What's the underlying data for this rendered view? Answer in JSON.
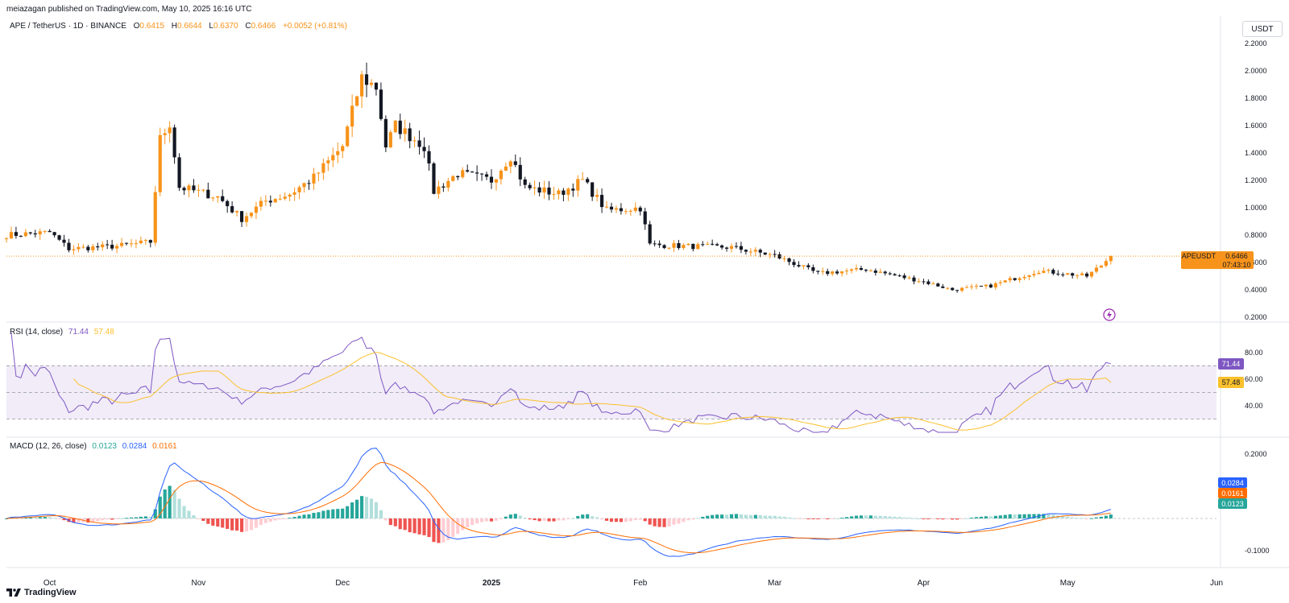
{
  "header": {
    "published": "meiazagan published on TradingView.com, May 10, 2025 16:16 UTC"
  },
  "symbol": {
    "name": "APE / TetherUS · 1D · BINANCE",
    "o_label": "O",
    "o": "0.6415",
    "h_label": "H",
    "h": "0.6644",
    "l_label": "L",
    "l": "0.6370",
    "c_label": "C",
    "c": "0.6466",
    "change": "+0.0052 (+0.81%)"
  },
  "currency": "USDT",
  "price_axis": {
    "labels": [
      "2.2000",
      "2.0000",
      "1.8000",
      "1.6000",
      "1.4000",
      "1.2000",
      "1.0000",
      "0.8000",
      "0.6000",
      "0.4000",
      "0.2000"
    ],
    "min": 0.2,
    "max": 2.2
  },
  "last_price": {
    "ticker": "APEUSDT",
    "value": "0.6466",
    "countdown": "07:43:10",
    "value_num": 0.6466
  },
  "time_axis": {
    "labels": [
      "Oct",
      "Nov",
      "Dec",
      "2025",
      "Feb",
      "Mar",
      "Apr",
      "May",
      "Jun"
    ]
  },
  "rsi": {
    "legend_name": "RSI (14, close)",
    "value": "71.44",
    "ma": "57.48",
    "axis_labels": [
      "80.00",
      "60.00",
      "40.00"
    ],
    "upper": 70,
    "mid": 50,
    "lower": 30
  },
  "macd": {
    "legend_name": "MACD (12, 26, close)",
    "hist": "0.0123",
    "macd": "0.0284",
    "signal": "0.0161",
    "axis_labels": [
      "0.2000",
      "-0.1000"
    ]
  },
  "colors": {
    "up": "#f7931a",
    "down": "#131722",
    "rsi": "#7e57c2",
    "rsi_ma": "#fbc02d",
    "macd": "#2962ff",
    "signal": "#ff6d00",
    "hist_up": "#26a69a",
    "hist_down": "#ef5350"
  },
  "footer": {
    "brand": "TradingView"
  },
  "chart_data": {
    "type": "candlestick",
    "title": "APE / TetherUS · 1D · BINANCE",
    "ylim": [
      0.2,
      2.2
    ],
    "x_range": [
      "2024-09-22",
      "2025-06-01"
    ],
    "key_points": [
      [
        "2024-09-22",
        0.8
      ],
      [
        "2024-10-01",
        0.82
      ],
      [
        "2024-10-05",
        0.7
      ],
      [
        "2024-10-15",
        0.72
      ],
      [
        "2024-10-22",
        0.75
      ],
      [
        "2024-10-24",
        1.5
      ],
      [
        "2024-10-26",
        1.62
      ],
      [
        "2024-10-28",
        1.15
      ],
      [
        "2024-11-05",
        1.08
      ],
      [
        "2024-11-10",
        0.92
      ],
      [
        "2024-11-15",
        1.05
      ],
      [
        "2024-11-20",
        1.1
      ],
      [
        "2024-11-25",
        1.22
      ],
      [
        "2024-12-01",
        1.45
      ],
      [
        "2024-12-05",
        1.95
      ],
      [
        "2024-12-08",
        1.88
      ],
      [
        "2024-12-10",
        1.45
      ],
      [
        "2024-12-12",
        1.6
      ],
      [
        "2024-12-18",
        1.45
      ],
      [
        "2024-12-20",
        1.12
      ],
      [
        "2024-12-25",
        1.25
      ],
      [
        "2025-01-01",
        1.2
      ],
      [
        "2025-01-05",
        1.38
      ],
      [
        "2025-01-08",
        1.15
      ],
      [
        "2025-01-15",
        1.1
      ],
      [
        "2025-01-20",
        1.2
      ],
      [
        "2025-01-25",
        0.98
      ],
      [
        "2025-02-01",
        1.0
      ],
      [
        "2025-02-03",
        0.73
      ],
      [
        "2025-02-10",
        0.72
      ],
      [
        "2025-02-20",
        0.71
      ],
      [
        "2025-03-01",
        0.65
      ],
      [
        "2025-03-10",
        0.52
      ],
      [
        "2025-03-20",
        0.55
      ],
      [
        "2025-04-01",
        0.46
      ],
      [
        "2025-04-07",
        0.4
      ],
      [
        "2025-04-15",
        0.43
      ],
      [
        "2025-04-25",
        0.54
      ],
      [
        "2025-05-05",
        0.5
      ],
      [
        "2025-05-08",
        0.58
      ],
      [
        "2025-05-10",
        0.6466
      ]
    ],
    "rsi_series_note": "RSI(14) ~71.44 latest; MA 57.48",
    "macd_latest": {
      "macd": 0.0284,
      "signal": 0.0161,
      "hist": 0.0123
    }
  }
}
